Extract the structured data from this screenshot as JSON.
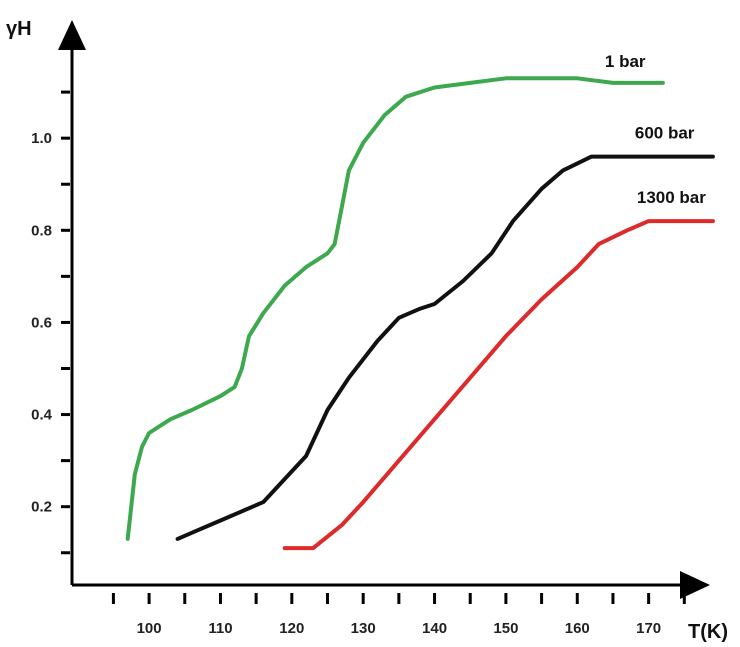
{
  "chart_data": {
    "type": "line",
    "title": "",
    "xlabel": "T(K)",
    "ylabel": "γH",
    "xlim": [
      92,
      180
    ],
    "ylim": [
      0.03,
      1.25
    ],
    "x_ticks": [
      100,
      110,
      120,
      130,
      140,
      150,
      160,
      170
    ],
    "y_ticks": [
      0.2,
      0.4,
      0.6,
      0.8,
      1.0
    ],
    "x_minor_ticks": [
      95,
      105,
      115,
      125,
      135,
      145,
      155,
      165,
      175
    ],
    "y_minor_ticks": [
      0.1,
      0.3,
      0.5,
      0.7,
      0.9,
      1.1,
      1.2
    ],
    "grid": false,
    "legend": "inline labels at line ends",
    "series": [
      {
        "name": "1 bar",
        "color": "#3ea84e",
        "points": [
          [
            97,
            0.13
          ],
          [
            98,
            0.27
          ],
          [
            99,
            0.33
          ],
          [
            100,
            0.36
          ],
          [
            103,
            0.39
          ],
          [
            106,
            0.41
          ],
          [
            110,
            0.44
          ],
          [
            112,
            0.46
          ],
          [
            113,
            0.5
          ],
          [
            114,
            0.57
          ],
          [
            116,
            0.62
          ],
          [
            119,
            0.68
          ],
          [
            122,
            0.72
          ],
          [
            125,
            0.75
          ],
          [
            126,
            0.77
          ],
          [
            127,
            0.85
          ],
          [
            128,
            0.93
          ],
          [
            130,
            0.99
          ],
          [
            133,
            1.05
          ],
          [
            136,
            1.09
          ],
          [
            140,
            1.11
          ],
          [
            145,
            1.12
          ],
          [
            150,
            1.13
          ],
          [
            160,
            1.13
          ],
          [
            165,
            1.12
          ],
          [
            172,
            1.12
          ]
        ]
      },
      {
        "name": "600 bar",
        "color": "#111111",
        "points": [
          [
            104,
            0.13
          ],
          [
            107,
            0.15
          ],
          [
            110,
            0.17
          ],
          [
            113,
            0.19
          ],
          [
            116,
            0.21
          ],
          [
            119,
            0.26
          ],
          [
            122,
            0.31
          ],
          [
            125,
            0.41
          ],
          [
            128,
            0.48
          ],
          [
            132,
            0.56
          ],
          [
            135,
            0.61
          ],
          [
            138,
            0.63
          ],
          [
            140,
            0.64
          ],
          [
            144,
            0.69
          ],
          [
            148,
            0.75
          ],
          [
            151,
            0.82
          ],
          [
            155,
            0.89
          ],
          [
            158,
            0.93
          ],
          [
            162,
            0.96
          ],
          [
            168,
            0.96
          ],
          [
            175,
            0.96
          ],
          [
            179,
            0.96
          ]
        ]
      },
      {
        "name": "1300 bar",
        "color": "#dd2a2a",
        "points": [
          [
            119,
            0.11
          ],
          [
            123,
            0.11
          ],
          [
            127,
            0.16
          ],
          [
            130,
            0.21
          ],
          [
            135,
            0.3
          ],
          [
            140,
            0.39
          ],
          [
            145,
            0.48
          ],
          [
            150,
            0.57
          ],
          [
            155,
            0.65
          ],
          [
            160,
            0.72
          ],
          [
            163,
            0.77
          ],
          [
            167,
            0.8
          ],
          [
            170,
            0.82
          ],
          [
            174,
            0.82
          ],
          [
            179,
            0.82
          ]
        ]
      }
    ]
  }
}
